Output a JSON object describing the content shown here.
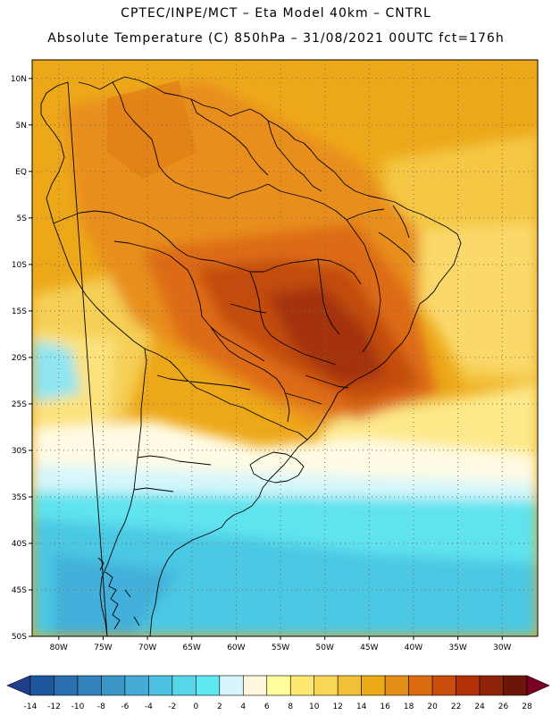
{
  "header": {
    "line1": "CPTEC/INPE/MCT –  Eta Model 40km – CNTRL",
    "line2": "Absolute Temperature (C) 850hPa – 31/08/2021 00UTC fct=176h"
  },
  "map": {
    "lat_labels": [
      "10N",
      "5N",
      "EQ",
      "5S",
      "10S",
      "15S",
      "20S",
      "25S",
      "30S",
      "35S",
      "40S",
      "45S",
      "50S"
    ],
    "lon_labels": [
      "80W",
      "75W",
      "70W",
      "65W",
      "60W",
      "55W",
      "50W",
      "45W",
      "40W",
      "35W",
      "30W"
    ],
    "extent": {
      "lon_min": -83,
      "lon_max": -26,
      "lat_min": -50,
      "lat_max": 12
    }
  },
  "colorbar": {
    "ticks": [
      "-14",
      "-12",
      "-10",
      "-8",
      "-6",
      "-4",
      "-2",
      "0",
      "2",
      "4",
      "6",
      "8",
      "10",
      "12",
      "14",
      "16",
      "18",
      "20",
      "22",
      "24",
      "26",
      "28"
    ],
    "colors": [
      "#1f3e8c",
      "#1c57a0",
      "#2a6fb0",
      "#3383bd",
      "#3a97c8",
      "#44acd6",
      "#4dc1e1",
      "#57d6ea",
      "#5fe8f2",
      "#d6f6fb",
      "#fff6de",
      "#fffd9a",
      "#fde86f",
      "#f8d657",
      "#f2c037",
      "#ebaa16",
      "#e48e1a",
      "#dc6c10",
      "#c94d0c",
      "#b2320a",
      "#8f2208",
      "#6c1508",
      "#7a0024"
    ]
  }
}
